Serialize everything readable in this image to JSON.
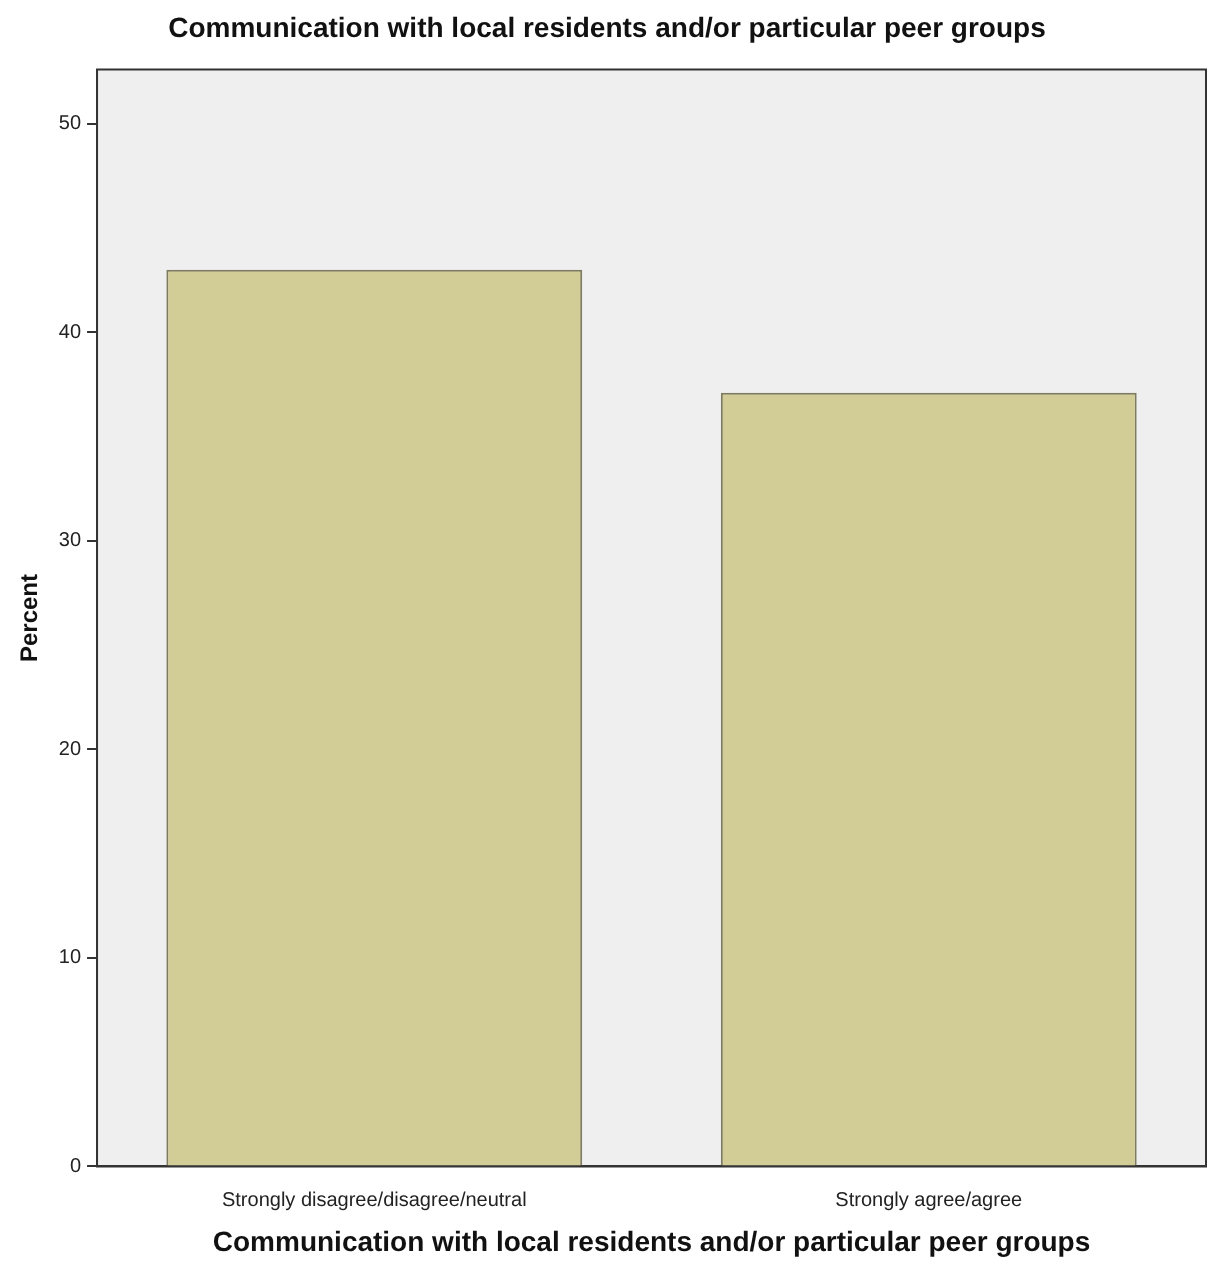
{
  "chart_data": {
    "type": "bar",
    "title": "Communication with local residents and/or particular peer groups",
    "xlabel": "Communication with local residents and/or particular peer groups",
    "ylabel": "Percent",
    "categories": [
      "Strongly disagree/disagree/neutral",
      "Strongly agree/agree"
    ],
    "values": [
      43,
      37.1
    ],
    "color": "#d2cd96",
    "ylim": [
      0,
      52.6
    ],
    "yticks": [
      0,
      10,
      20,
      30,
      40,
      50
    ],
    "grid": false,
    "legend": false
  }
}
